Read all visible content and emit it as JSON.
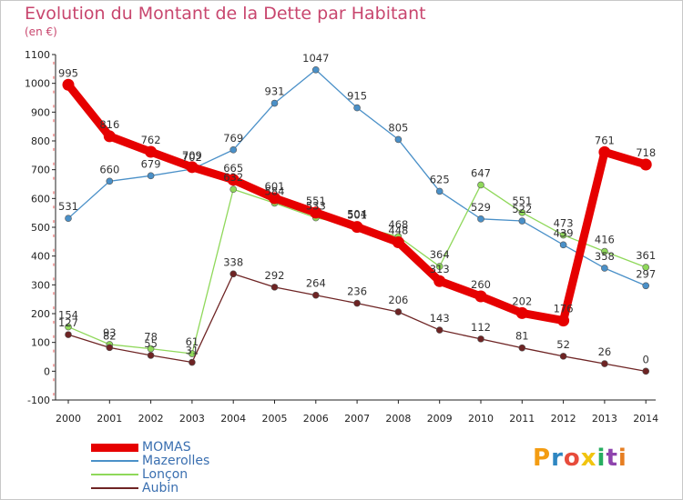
{
  "title": "Evolution du Montant de la Dette par Habitant",
  "unit_label": "(en €)",
  "logo_text": "Proxiti",
  "logo_colors": [
    "#f39c12",
    "#2e86c1",
    "#e74c3c",
    "#f1c40f",
    "#27ae60",
    "#8e44ad",
    "#e67e22"
  ],
  "chart_data": {
    "type": "line",
    "title": "Evolution du Montant de la Dette par Habitant",
    "ylabel": "(en €)",
    "xlabel": "",
    "ylim": [
      -100,
      1100
    ],
    "y_ticks": [
      -100,
      0,
      100,
      200,
      300,
      400,
      500,
      600,
      700,
      800,
      900,
      1000,
      1100
    ],
    "x": [
      "2000",
      "2001",
      "2002",
      "2003",
      "2004",
      "2005",
      "2006",
      "2007",
      "2008",
      "2009",
      "2010",
      "2011",
      "2012",
      "2013",
      "2014"
    ],
    "grid": false,
    "legend_position": "bottom-left",
    "series": [
      {
        "name": "MOMAS",
        "color": "#e60000",
        "highlight": true,
        "values": [
          995,
          816,
          762,
          709,
          665,
          601,
          551,
          501,
          448,
          313,
          260,
          202,
          176,
          761,
          718
        ]
      },
      {
        "name": "Mazerolles",
        "color": "#4a90c8",
        "highlight": false,
        "values": [
          531,
          660,
          679,
          702,
          769,
          931,
          1047,
          915,
          805,
          625,
          529,
          522,
          439,
          358,
          297
        ]
      },
      {
        "name": "Lonçon",
        "color": "#8fd85a",
        "highlight": false,
        "values": [
          154,
          93,
          78,
          61,
          632,
          584,
          533,
          504,
          468,
          364,
          647,
          551,
          473,
          416,
          361
        ]
      },
      {
        "name": "Aubin",
        "color": "#6e2424",
        "highlight": false,
        "values": [
          127,
          82,
          55,
          31,
          338,
          292,
          264,
          236,
          206,
          143,
          112,
          81,
          52,
          26,
          0
        ]
      }
    ]
  }
}
